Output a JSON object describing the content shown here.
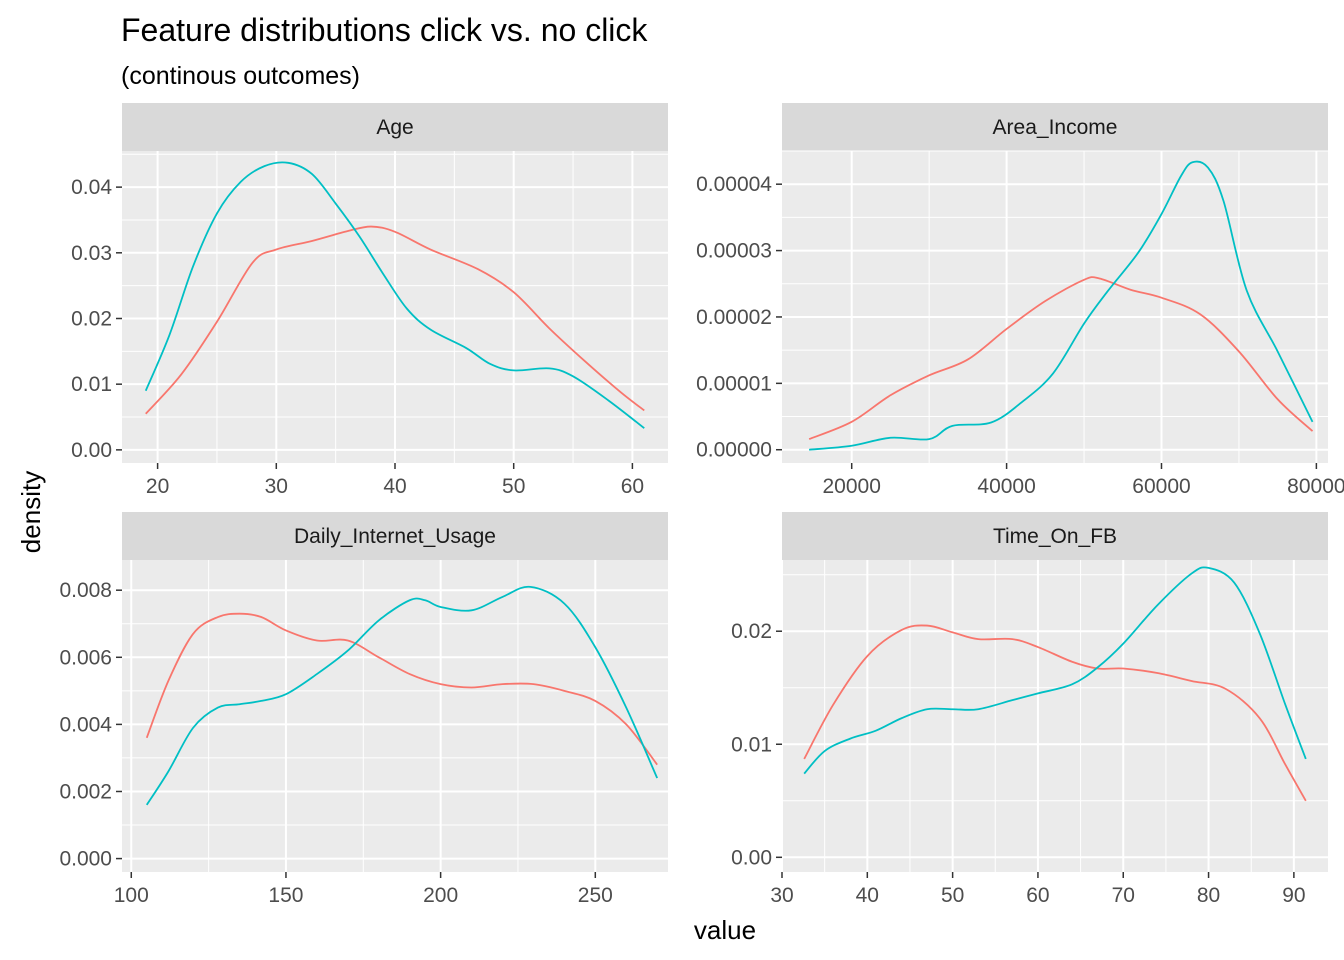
{
  "title": "Feature distributions click vs. no click",
  "subtitle": "(continous outcomes)",
  "xlabel": "value",
  "ylabel": "density",
  "colors": {
    "red": "#F8766D",
    "cyan": "#00BFC4",
    "panel": "#EBEBEB",
    "strip": "#D9D9D9",
    "grid": "#FFFFFF"
  },
  "chart_data": [
    {
      "type": "line",
      "panel": "Age",
      "xlim": [
        17,
        63
      ],
      "ylim": [
        -0.002,
        0.0455
      ],
      "xticks": [
        20,
        30,
        40,
        50,
        60
      ],
      "xtick_labels": [
        "20",
        "30",
        "40",
        "50",
        "60"
      ],
      "yticks": [
        0,
        0.01,
        0.02,
        0.03,
        0.04
      ],
      "ytick_labels": [
        "0.00",
        "0.01",
        "0.02",
        "0.03",
        "0.04"
      ],
      "series": [
        {
          "color": "#F8766D",
          "x": [
            19,
            22,
            25,
            28,
            30,
            33,
            36,
            38,
            40,
            43,
            47,
            50,
            53,
            56,
            59,
            61
          ],
          "y": [
            0.0055,
            0.0115,
            0.0195,
            0.0285,
            0.0305,
            0.0318,
            0.0333,
            0.034,
            0.0332,
            0.0305,
            0.0275,
            0.024,
            0.0185,
            0.0135,
            0.0088,
            0.006
          ]
        },
        {
          "color": "#00BFC4",
          "x": [
            19,
            21,
            23,
            25,
            27,
            29,
            31,
            33,
            35,
            37,
            39,
            41,
            43,
            46,
            48,
            50,
            53,
            55,
            58,
            61
          ],
          "y": [
            0.009,
            0.0175,
            0.028,
            0.036,
            0.0408,
            0.0432,
            0.0437,
            0.042,
            0.0375,
            0.0325,
            0.0268,
            0.0215,
            0.0183,
            0.0155,
            0.0131,
            0.0121,
            0.0124,
            0.0112,
            0.0075,
            0.0033
          ]
        }
      ]
    },
    {
      "type": "line",
      "panel": "Area_Income",
      "xlim": [
        11000,
        81500
      ],
      "ylim": [
        -2e-06,
        4.5e-05
      ],
      "xticks": [
        20000,
        40000,
        60000,
        80000
      ],
      "xtick_labels": [
        "20000",
        "40000",
        "60000",
        "80000"
      ],
      "yticks": [
        0,
        1e-05,
        2e-05,
        3e-05,
        4e-05
      ],
      "ytick_labels": [
        "0.00000",
        "0.00001",
        "0.00002",
        "0.00003",
        "0.00004"
      ],
      "series": [
        {
          "color": "#F8766D",
          "x": [
            14500,
            20000,
            25000,
            30000,
            35000,
            40000,
            45000,
            50000,
            52000,
            56000,
            60000,
            65000,
            70000,
            75000,
            79500
          ],
          "y": [
            1.6e-06,
            4.2e-06,
            8.2e-06,
            1.12e-05,
            1.36e-05,
            1.82e-05,
            2.24e-05,
            2.56e-05,
            2.58e-05,
            2.41e-05,
            2.29e-05,
            2.04e-05,
            1.48e-05,
            7.6e-06,
            2.8e-06
          ]
        },
        {
          "color": "#00BFC4",
          "x": [
            14500,
            20000,
            25000,
            30000,
            33000,
            38000,
            42000,
            46000,
            50000,
            53000,
            57000,
            60000,
            62500,
            64000,
            66000,
            68000,
            71000,
            75000,
            79500
          ],
          "y": [
            0.0,
            6e-07,
            1.8e-06,
            1.6e-06,
            3.6e-06,
            4.1e-06,
            7.2e-06,
            1.15e-05,
            1.9e-05,
            2.38e-05,
            2.97e-05,
            3.55e-05,
            4.12e-05,
            4.33e-05,
            4.25e-05,
            3.75e-05,
            2.4e-05,
            1.48e-05,
            4.2e-06
          ]
        }
      ]
    },
    {
      "type": "line",
      "panel": "Daily_Internet_Usage",
      "xlim": [
        97,
        273.5
      ],
      "ylim": [
        -0.0004,
        0.0089
      ],
      "xticks": [
        100,
        150,
        200,
        250
      ],
      "xtick_labels": [
        "100",
        "150",
        "200",
        "250"
      ],
      "yticks": [
        0,
        0.002,
        0.004,
        0.006,
        0.008
      ],
      "ytick_labels": [
        "0.000",
        "0.002",
        "0.004",
        "0.006",
        "0.008"
      ],
      "series": [
        {
          "color": "#F8766D",
          "x": [
            105,
            112,
            120,
            128,
            135,
            142,
            150,
            160,
            170,
            180,
            190,
            200,
            210,
            220,
            230,
            240,
            250,
            260,
            270
          ],
          "y": [
            0.0036,
            0.0053,
            0.0067,
            0.0072,
            0.0073,
            0.0072,
            0.0068,
            0.0065,
            0.0065,
            0.006,
            0.0055,
            0.0052,
            0.0051,
            0.0052,
            0.0052,
            0.005,
            0.0047,
            0.004,
            0.0028
          ]
        },
        {
          "color": "#00BFC4",
          "x": [
            105,
            112,
            120,
            128,
            135,
            142,
            150,
            160,
            170,
            180,
            190,
            195,
            200,
            210,
            220,
            229,
            240,
            250,
            260,
            270
          ],
          "y": [
            0.0016,
            0.0026,
            0.0039,
            0.0045,
            0.0046,
            0.0047,
            0.0049,
            0.0055,
            0.0062,
            0.0071,
            0.0077,
            0.0077,
            0.0075,
            0.0074,
            0.0078,
            0.0081,
            0.0076,
            0.0063,
            0.0045,
            0.0024
          ]
        }
      ]
    },
    {
      "type": "line",
      "panel": "Time_On_FB",
      "xlim": [
        30,
        94
      ],
      "ylim": [
        -0.0013,
        0.0263
      ],
      "xticks": [
        30,
        40,
        50,
        60,
        70,
        80,
        90
      ],
      "xtick_labels": [
        "30",
        "40",
        "50",
        "60",
        "70",
        "80",
        "90"
      ],
      "yticks": [
        0,
        0.01,
        0.02
      ],
      "ytick_labels": [
        "0.00",
        "0.01",
        "0.02"
      ],
      "series": [
        {
          "color": "#F8766D",
          "x": [
            32.6,
            36,
            40,
            44,
            47,
            50,
            53,
            57,
            60,
            64,
            67,
            70,
            74,
            78,
            82,
            86,
            89,
            91.4
          ],
          "y": [
            0.0087,
            0.0135,
            0.0178,
            0.0201,
            0.0205,
            0.0199,
            0.0193,
            0.0193,
            0.0186,
            0.0173,
            0.0167,
            0.0167,
            0.0163,
            0.0156,
            0.0149,
            0.0123,
            0.0082,
            0.005
          ]
        },
        {
          "color": "#00BFC4",
          "x": [
            32.6,
            35,
            38,
            41,
            44,
            47,
            50,
            53,
            57,
            60,
            64,
            67,
            70,
            74,
            78,
            80,
            83,
            86,
            89,
            91.4
          ],
          "y": [
            0.0074,
            0.0094,
            0.0105,
            0.0112,
            0.0123,
            0.0131,
            0.0131,
            0.0131,
            0.0139,
            0.0145,
            0.0153,
            0.0168,
            0.0189,
            0.0223,
            0.0251,
            0.0256,
            0.0243,
            0.0198,
            0.0135,
            0.0087
          ]
        }
      ]
    }
  ]
}
